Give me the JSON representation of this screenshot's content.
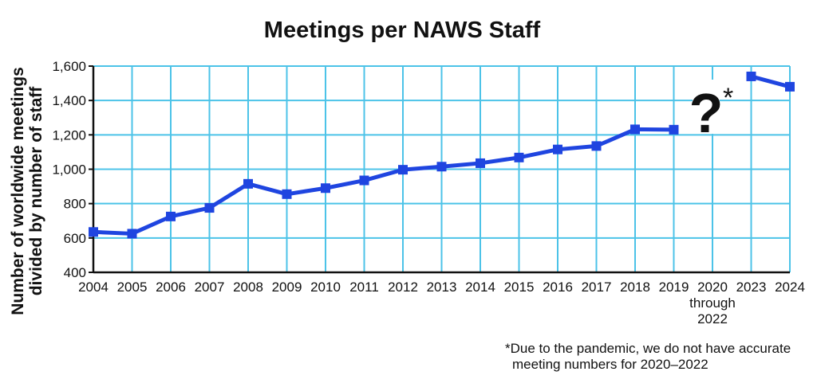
{
  "chart_data": {
    "type": "line",
    "title": "Meetings per NAWS Staff",
    "ylabel_lines": [
      "Number of worldwide meetings",
      "divided by number of staff"
    ],
    "categories": [
      "2004",
      "2005",
      "2006",
      "2007",
      "2008",
      "2009",
      "2010",
      "2011",
      "2012",
      "2013",
      "2014",
      "2015",
      "2016",
      "2017",
      "2018",
      "2019",
      "2020 through 2022",
      "2023",
      "2024"
    ],
    "category_label_lines": [
      [
        "2004"
      ],
      [
        "2005"
      ],
      [
        "2006"
      ],
      [
        "2007"
      ],
      [
        "2008"
      ],
      [
        "2009"
      ],
      [
        "2010"
      ],
      [
        "2011"
      ],
      [
        "2012"
      ],
      [
        "2013"
      ],
      [
        "2014"
      ],
      [
        "2015"
      ],
      [
        "2016"
      ],
      [
        "2017"
      ],
      [
        "2018"
      ],
      [
        "2019"
      ],
      [
        "2020",
        "through",
        "2022"
      ],
      [
        "2023"
      ],
      [
        "2024"
      ]
    ],
    "series": [
      {
        "values": [
          635,
          625,
          725,
          775,
          915,
          855,
          890,
          935,
          997,
          1015,
          1035,
          1068,
          1115,
          1135,
          1232,
          1230,
          null,
          1540,
          1480
        ]
      }
    ],
    "ylim": [
      400,
      1600
    ],
    "yticks": [
      400,
      600,
      800,
      1000,
      1200,
      1400,
      1600
    ],
    "ytick_labels": [
      "400",
      "600",
      "800",
      "1,000",
      "1,200",
      "1,400",
      "1,600"
    ],
    "grid": true,
    "colors": {
      "line": "#1f45e0",
      "grid": "#4cc3e8",
      "axis": "#111111"
    },
    "gap_annotation": {
      "symbol": "?",
      "mark": "*"
    },
    "footnote_lines": [
      "*Due to the pandemic, we do not have accurate",
      "meeting numbers for 2020–2022"
    ]
  }
}
